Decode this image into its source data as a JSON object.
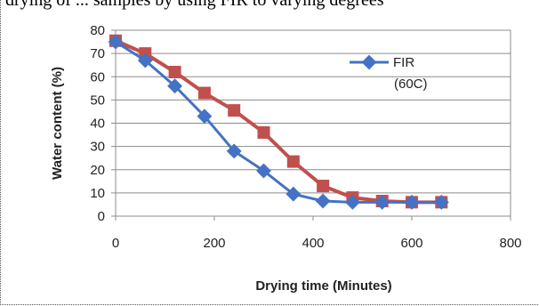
{
  "top_caption": "drying of ... samples by using FIR to varying degrees",
  "chart_data": {
    "type": "line",
    "xlabel": "Drying time (Minutes)",
    "ylabel": "Water content (%)",
    "xlim": [
      0,
      800
    ],
    "ylim": [
      0,
      80
    ],
    "x_ticks": [
      "0",
      "200",
      "400",
      "600",
      "800"
    ],
    "y_ticks": [
      "0",
      "10",
      "20",
      "30",
      "40",
      "50",
      "60",
      "70",
      "80"
    ],
    "grid": "horizontal",
    "legend": {
      "placement": "top-right",
      "entries": [
        "FIR",
        "(60C)"
      ]
    },
    "series": [
      {
        "name": "FIR (60C)",
        "color": "#4472C4",
        "marker": "diamond",
        "x": [
          0,
          60,
          120,
          180,
          240,
          300,
          360,
          420,
          480,
          540,
          600,
          660
        ],
        "y": [
          75,
          67,
          56,
          43,
          28,
          19.5,
          9.5,
          6.5,
          6,
          6,
          6,
          6
        ]
      },
      {
        "name": "",
        "color": "#C0504D",
        "marker": "square",
        "x": [
          0,
          60,
          120,
          180,
          240,
          300,
          360,
          420,
          480,
          540,
          600,
          660
        ],
        "y": [
          75.5,
          70,
          62,
          53,
          45.5,
          36,
          23.5,
          13,
          8,
          6.5,
          6,
          6
        ]
      }
    ]
  }
}
